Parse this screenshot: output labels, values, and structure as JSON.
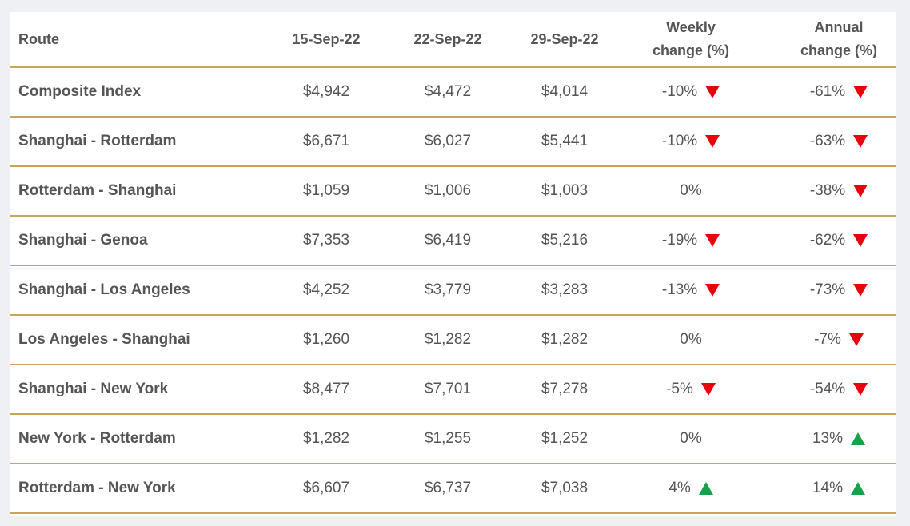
{
  "table": {
    "header": [
      "Route",
      "15-Sep-22",
      "22-Sep-22",
      "29-Sep-22",
      "Weekly change (%)",
      "Annual change (%)"
    ],
    "rows": [
      [
        "Composite Index",
        "$4,942",
        "$4,472",
        "$4,014",
        "-10%",
        "-61%"
      ],
      [
        "Shanghai - Rotterdam",
        "$6,671",
        "$6,027",
        "$5,441",
        "-10%",
        "-63%"
      ],
      [
        "Rotterdam - Shanghai",
        "$1,059",
        "$1,006",
        "$1,003",
        "0%",
        "-38%"
      ],
      [
        "Shanghai - Genoa",
        "$7,353",
        "$6,419",
        "$5,216",
        "-19%",
        "-62%"
      ],
      [
        "Shanghai - Los Angeles",
        "$4,252",
        "$3,779",
        "$3,283",
        "-13%",
        "-73%"
      ],
      [
        "Los Angeles - Shanghai",
        "$1,260",
        "$1,282",
        "$1,282",
        "0%",
        "-7%"
      ],
      [
        "Shanghai - New York",
        "$8,477",
        "$7,701",
        "$7,278",
        "-5%",
        "-54%"
      ],
      [
        "New York - Rotterdam",
        "$1,282",
        "$1,255",
        "$1,252",
        "0%",
        "13%"
      ],
      [
        "Rotterdam - New York",
        "$6,607",
        "$6,737",
        "$7,038",
        "4%",
        "14%"
      ]
    ]
  }
}
